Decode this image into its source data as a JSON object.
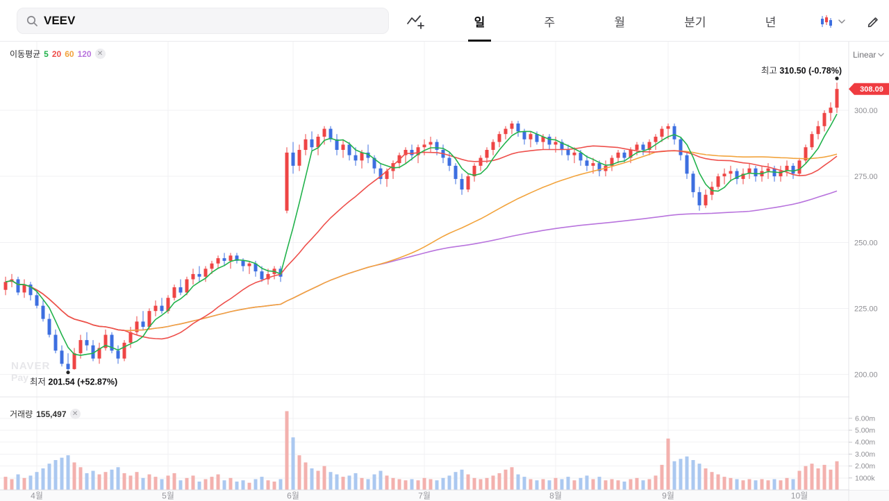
{
  "header": {
    "search": {
      "value": "VEEV",
      "icon": "search-icon"
    },
    "tabs": [
      {
        "label": "일",
        "active": true
      },
      {
        "label": "주",
        "active": false
      },
      {
        "label": "월",
        "active": false
      },
      {
        "label": "분기",
        "active": false
      },
      {
        "label": "년",
        "active": false
      }
    ],
    "tools": {
      "indicator_icon": "line-chart-plus-icon",
      "chart_type_icon": "candlestick-icon",
      "draw_icon": "pencil-icon"
    }
  },
  "chart": {
    "scale_label": "Linear",
    "legend": {
      "title": "이동평균",
      "periods": [
        {
          "label": "5"
        },
        {
          "label": "20"
        },
        {
          "label": "60"
        },
        {
          "label": "120"
        }
      ]
    },
    "volume_legend": {
      "title": "거래량",
      "value": "155,497"
    },
    "annotations": {
      "high_label": "최고",
      "high_text": "310.50 (-0.78%)",
      "low_label": "최저",
      "low_text": "201.54 (+52.87%)",
      "price_badge": "308.09"
    },
    "watermark": [
      "NAVER",
      "Pay"
    ]
  },
  "chart_data": {
    "type": "candlestick",
    "x_ticks": {
      "labels": [
        "4월",
        "5월",
        "6월",
        "7월",
        "8월",
        "9월",
        "10월"
      ],
      "indices": [
        5,
        26,
        46,
        67,
        88,
        106,
        127
      ]
    },
    "price_axis": {
      "ticks": [
        300,
        275,
        250,
        225,
        200
      ],
      "tick_labels": [
        "300.00",
        "275.00",
        "250.00",
        "225.00",
        "200.00"
      ],
      "ylim": [
        192,
        326
      ]
    },
    "volume_axis": {
      "ticks": [
        6,
        5,
        4,
        3,
        2,
        1
      ],
      "tick_labels": [
        "6.00m",
        "5.00m",
        "4.00m",
        "3.00m",
        "2.00m",
        "1000k"
      ],
      "unit": "millions"
    },
    "high_point": {
      "value": 310.5,
      "change": "-0.78%"
    },
    "low_point": {
      "value": 201.54,
      "change": "+52.87%",
      "index": 10
    },
    "last_price": 308.09,
    "ma_periods": [
      5,
      20,
      60,
      120
    ],
    "ma_colors": [
      "#21b24b",
      "#ee4f4b",
      "#f2a33c",
      "#b873dd"
    ],
    "up_color": "#ee4545",
    "down_color": "#3d6fe0",
    "up_volume_color": "#f3b1ae",
    "down_volume_color": "#abc8f0",
    "candles": [
      [
        232,
        237,
        230,
        235,
        1.1
      ],
      [
        235,
        238,
        233,
        236,
        0.9
      ],
      [
        236,
        237,
        230,
        231,
        1.3
      ],
      [
        231,
        236,
        229,
        234,
        1.0
      ],
      [
        234,
        235,
        228,
        230,
        1.2
      ],
      [
        230,
        232,
        225,
        226,
        1.5
      ],
      [
        226,
        228,
        220,
        221,
        1.8
      ],
      [
        221,
        223,
        214,
        215,
        2.2
      ],
      [
        215,
        217,
        208,
        209,
        2.5
      ],
      [
        209,
        211,
        203,
        204,
        2.7
      ],
      [
        204,
        208,
        201.54,
        202,
        2.9
      ],
      [
        202,
        210,
        201.8,
        208,
        2.3
      ],
      [
        208,
        215,
        206,
        213,
        1.9
      ],
      [
        213,
        216,
        209,
        211,
        1.4
      ],
      [
        211,
        213,
        205,
        206,
        1.6
      ],
      [
        206,
        212,
        204,
        210,
        1.3
      ],
      [
        210,
        217,
        209,
        215,
        1.5
      ],
      [
        215,
        216,
        208,
        209,
        1.7
      ],
      [
        209,
        211,
        204,
        206,
        1.9
      ],
      [
        206,
        213,
        205,
        212,
        1.4
      ],
      [
        212,
        218,
        210,
        216,
        1.2
      ],
      [
        216,
        222,
        215,
        220,
        1.5
      ],
      [
        220,
        224,
        217,
        218,
        1.0
      ],
      [
        218,
        225,
        217,
        224,
        1.3
      ],
      [
        224,
        228,
        222,
        226,
        1.1
      ],
      [
        226,
        229,
        223,
        224,
        0.9
      ],
      [
        224,
        230,
        223,
        229,
        1.2
      ],
      [
        229,
        234,
        228,
        233,
        1.4
      ],
      [
        233,
        236,
        230,
        231,
        0.8
      ],
      [
        231,
        237,
        230,
        236,
        1.0
      ],
      [
        236,
        240,
        234,
        238,
        1.2
      ],
      [
        238,
        241,
        235,
        237,
        0.7
      ],
      [
        237,
        241,
        235,
        240,
        0.9
      ],
      [
        240,
        243,
        238,
        242,
        1.1
      ],
      [
        242,
        245,
        240,
        244,
        1.3
      ],
      [
        244,
        246,
        241,
        243,
        0.8
      ],
      [
        243,
        246,
        240,
        245,
        1.0
      ],
      [
        245,
        246,
        242,
        243,
        0.7
      ],
      [
        243,
        244,
        239,
        241,
        0.8
      ],
      [
        241,
        243,
        238,
        242,
        0.6
      ],
      [
        242,
        243,
        237,
        239,
        0.9
      ],
      [
        239,
        241,
        235,
        236,
        1.1
      ],
      [
        236,
        240,
        234,
        238,
        0.8
      ],
      [
        238,
        241,
        236,
        240,
        0.7
      ],
      [
        240,
        241,
        235,
        237,
        0.9
      ],
      [
        262,
        286,
        261,
        284,
        6.6
      ],
      [
        284,
        288,
        276,
        279,
        4.4
      ],
      [
        279,
        287,
        277,
        285,
        2.9
      ],
      [
        285,
        291,
        283,
        289,
        2.3
      ],
      [
        289,
        292,
        284,
        286,
        1.8
      ],
      [
        286,
        291,
        283,
        290,
        1.6
      ],
      [
        290,
        294,
        287,
        293,
        2.0
      ],
      [
        293,
        294,
        288,
        289,
        1.5
      ],
      [
        289,
        291,
        283,
        285,
        1.3
      ],
      [
        285,
        289,
        282,
        287,
        1.1
      ],
      [
        287,
        288,
        281,
        283,
        1.2
      ],
      [
        283,
        286,
        279,
        281,
        1.4
      ],
      [
        281,
        285,
        278,
        284,
        1.0
      ],
      [
        284,
        287,
        280,
        282,
        0.9
      ],
      [
        282,
        283,
        276,
        278,
        1.3
      ],
      [
        278,
        280,
        272,
        274,
        1.6
      ],
      [
        274,
        278,
        271,
        277,
        1.2
      ],
      [
        277,
        281,
        274,
        280,
        1.0
      ],
      [
        280,
        284,
        278,
        283,
        0.9
      ],
      [
        283,
        286,
        280,
        285,
        0.8
      ],
      [
        285,
        287,
        281,
        283,
        0.9
      ],
      [
        283,
        287,
        280,
        286,
        0.8
      ],
      [
        286,
        289,
        283,
        287,
        1.0
      ],
      [
        287,
        290,
        284,
        288,
        0.9
      ],
      [
        288,
        289,
        283,
        285,
        0.8
      ],
      [
        285,
        287,
        280,
        282,
        1.0
      ],
      [
        282,
        284,
        277,
        279,
        1.2
      ],
      [
        279,
        280,
        272,
        274,
        1.5
      ],
      [
        274,
        276,
        268,
        270,
        1.7
      ],
      [
        270,
        276,
        269,
        275,
        1.3
      ],
      [
        275,
        280,
        273,
        279,
        1.0
      ],
      [
        279,
        283,
        277,
        282,
        0.9
      ],
      [
        282,
        286,
        280,
        285,
        1.0
      ],
      [
        285,
        289,
        283,
        288,
        1.2
      ],
      [
        288,
        292,
        286,
        291,
        1.4
      ],
      [
        291,
        294,
        289,
        293,
        1.7
      ],
      [
        293,
        296,
        291,
        295,
        1.9
      ],
      [
        295,
        296,
        290,
        292,
        1.3
      ],
      [
        292,
        293,
        287,
        289,
        1.1
      ],
      [
        289,
        292,
        286,
        291,
        0.9
      ],
      [
        291,
        292,
        287,
        288,
        0.8
      ],
      [
        288,
        291,
        285,
        290,
        0.9
      ],
      [
        290,
        291,
        285,
        287,
        0.8
      ],
      [
        287,
        290,
        284,
        288,
        1.0
      ],
      [
        288,
        289,
        283,
        285,
        0.9
      ],
      [
        285,
        287,
        281,
        283,
        1.1
      ],
      [
        283,
        286,
        280,
        284,
        0.8
      ],
      [
        284,
        285,
        279,
        281,
        1.0
      ],
      [
        281,
        283,
        277,
        279,
        1.2
      ],
      [
        279,
        282,
        276,
        280,
        0.9
      ],
      [
        280,
        281,
        275,
        277,
        1.1
      ],
      [
        277,
        281,
        275,
        279,
        0.8
      ],
      [
        279,
        283,
        277,
        282,
        0.9
      ],
      [
        282,
        285,
        280,
        284,
        0.8
      ],
      [
        284,
        285,
        280,
        282,
        0.7
      ],
      [
        282,
        286,
        280,
        285,
        0.9
      ],
      [
        285,
        288,
        283,
        287,
        1.0
      ],
      [
        287,
        288,
        283,
        285,
        0.8
      ],
      [
        285,
        289,
        283,
        288,
        0.9
      ],
      [
        288,
        291,
        285,
        290,
        1.2
      ],
      [
        290,
        294,
        288,
        293,
        2.1
      ],
      [
        293,
        295,
        289,
        294,
        4.3
      ],
      [
        294,
        295,
        287,
        289,
        2.4
      ],
      [
        289,
        290,
        281,
        283,
        2.6
      ],
      [
        283,
        284,
        274,
        276,
        2.8
      ],
      [
        276,
        277,
        267,
        269,
        2.5
      ],
      [
        269,
        271,
        262,
        264,
        2.2
      ],
      [
        264,
        270,
        263,
        268,
        1.8
      ],
      [
        268,
        273,
        266,
        271,
        1.5
      ],
      [
        271,
        276,
        270,
        275,
        1.3
      ],
      [
        275,
        278,
        272,
        276,
        1.1
      ],
      [
        276,
        279,
        273,
        277,
        1.0
      ],
      [
        277,
        278,
        272,
        274,
        0.9
      ],
      [
        274,
        278,
        272,
        276,
        0.8
      ],
      [
        276,
        280,
        274,
        278,
        0.9
      ],
      [
        278,
        279,
        273,
        275,
        0.8
      ],
      [
        275,
        279,
        273,
        277,
        0.9
      ],
      [
        277,
        280,
        274,
        278,
        0.8
      ],
      [
        278,
        279,
        273,
        275,
        0.9
      ],
      [
        275,
        279,
        273,
        277,
        0.8
      ],
      [
        277,
        281,
        275,
        279,
        1.0
      ],
      [
        279,
        280,
        274,
        276,
        0.9
      ],
      [
        276,
        282,
        275,
        281,
        1.6
      ],
      [
        281,
        287,
        280,
        286,
        2.0
      ],
      [
        286,
        292,
        285,
        291,
        2.2
      ],
      [
        291,
        296,
        289,
        294,
        1.8
      ],
      [
        294,
        300,
        292,
        299,
        2.1
      ],
      [
        299,
        303,
        296,
        301,
        1.7
      ],
      [
        301,
        310.5,
        299,
        308.09,
        2.4
      ]
    ]
  }
}
